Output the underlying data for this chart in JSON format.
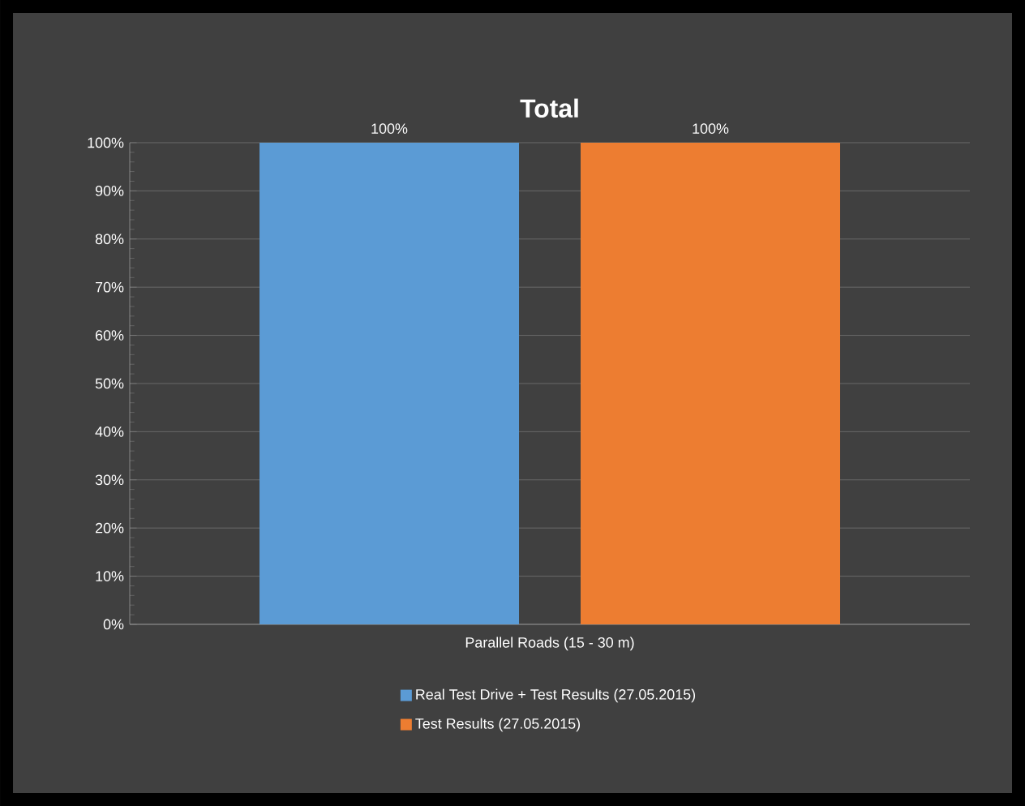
{
  "chart_data": {
    "type": "bar",
    "title": "Total",
    "categories": [
      "Parallel Roads (15 - 30 m)"
    ],
    "series": [
      {
        "name": "Real Test Drive + Test Results (27.05.2015)",
        "color": "#5b9bd5",
        "values": [
          100
        ],
        "value_labels": [
          "100%"
        ]
      },
      {
        "name": "Test Results (27.05.2015)",
        "color": "#ed7d31",
        "values": [
          100
        ],
        "value_labels": [
          "100%"
        ]
      }
    ],
    "ylim": [
      0,
      100
    ],
    "yticks": [
      {
        "value": 0,
        "label": "0%"
      },
      {
        "value": 10,
        "label": "10%"
      },
      {
        "value": 20,
        "label": "20%"
      },
      {
        "value": 30,
        "label": "30%"
      },
      {
        "value": 40,
        "label": "40%"
      },
      {
        "value": 50,
        "label": "50%"
      },
      {
        "value": 60,
        "label": "60%"
      },
      {
        "value": 70,
        "label": "70%"
      },
      {
        "value": 80,
        "label": "80%"
      },
      {
        "value": 90,
        "label": "90%"
      },
      {
        "value": 100,
        "label": "100%"
      }
    ],
    "grid": "y",
    "legend": "bottom"
  }
}
